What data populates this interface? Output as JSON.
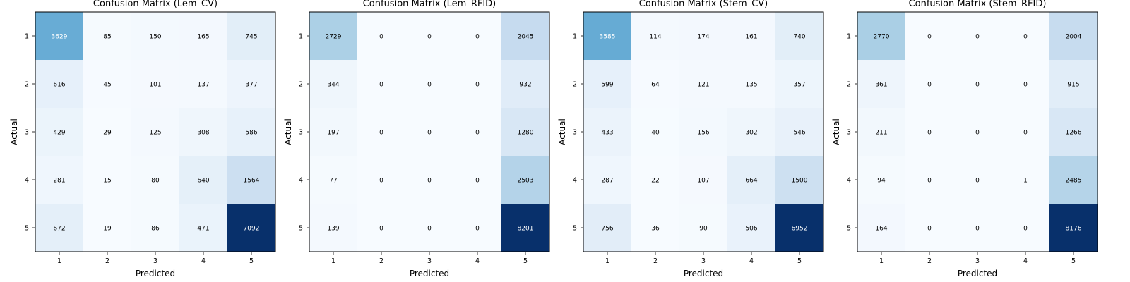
{
  "chart_data": [
    {
      "type": "heatmap",
      "title": "Confusion Matrix (Lem_CV)",
      "xlabel": "Predicted",
      "ylabel": "Actual",
      "x_categories": [
        "1",
        "2",
        "3",
        "4",
        "5"
      ],
      "y_categories": [
        "1",
        "2",
        "3",
        "4",
        "5"
      ],
      "values": [
        [
          3629,
          85,
          150,
          165,
          745
        ],
        [
          616,
          45,
          101,
          137,
          377
        ],
        [
          429,
          29,
          125,
          308,
          586
        ],
        [
          281,
          15,
          80,
          640,
          1564
        ],
        [
          672,
          19,
          86,
          471,
          7092
        ]
      ],
      "colormap": "Blues"
    },
    {
      "type": "heatmap",
      "title": "Confusion Matrix (Lem_RFID)",
      "xlabel": "Predicted",
      "ylabel": "Actual",
      "x_categories": [
        "1",
        "2",
        "3",
        "4",
        "5"
      ],
      "y_categories": [
        "1",
        "2",
        "3",
        "4",
        "5"
      ],
      "values": [
        [
          2729,
          0,
          0,
          0,
          2045
        ],
        [
          344,
          0,
          0,
          0,
          932
        ],
        [
          197,
          0,
          0,
          0,
          1280
        ],
        [
          77,
          0,
          0,
          0,
          2503
        ],
        [
          139,
          0,
          0,
          0,
          8201
        ]
      ],
      "colormap": "Blues"
    },
    {
      "type": "heatmap",
      "title": "Confusion Matrix (Stem_CV)",
      "xlabel": "Predicted",
      "ylabel": "Actual",
      "x_categories": [
        "1",
        "2",
        "3",
        "4",
        "5"
      ],
      "y_categories": [
        "1",
        "2",
        "3",
        "4",
        "5"
      ],
      "values": [
        [
          3585,
          114,
          174,
          161,
          740
        ],
        [
          599,
          64,
          121,
          135,
          357
        ],
        [
          433,
          40,
          156,
          302,
          546
        ],
        [
          287,
          22,
          107,
          664,
          1500
        ],
        [
          756,
          36,
          90,
          506,
          6952
        ]
      ],
      "colormap": "Blues"
    },
    {
      "type": "heatmap",
      "title": "Confusion Matrix (Stem_RFID)",
      "xlabel": "Predicted",
      "ylabel": "Actual",
      "x_categories": [
        "1",
        "2",
        "3",
        "4",
        "5"
      ],
      "y_categories": [
        "1",
        "2",
        "3",
        "4",
        "5"
      ],
      "values": [
        [
          2770,
          0,
          0,
          0,
          2004
        ],
        [
          361,
          0,
          0,
          0,
          915
        ],
        [
          211,
          0,
          0,
          0,
          1266
        ],
        [
          94,
          0,
          0,
          1,
          2485
        ],
        [
          164,
          0,
          0,
          0,
          8176
        ]
      ],
      "colormap": "Blues"
    }
  ]
}
